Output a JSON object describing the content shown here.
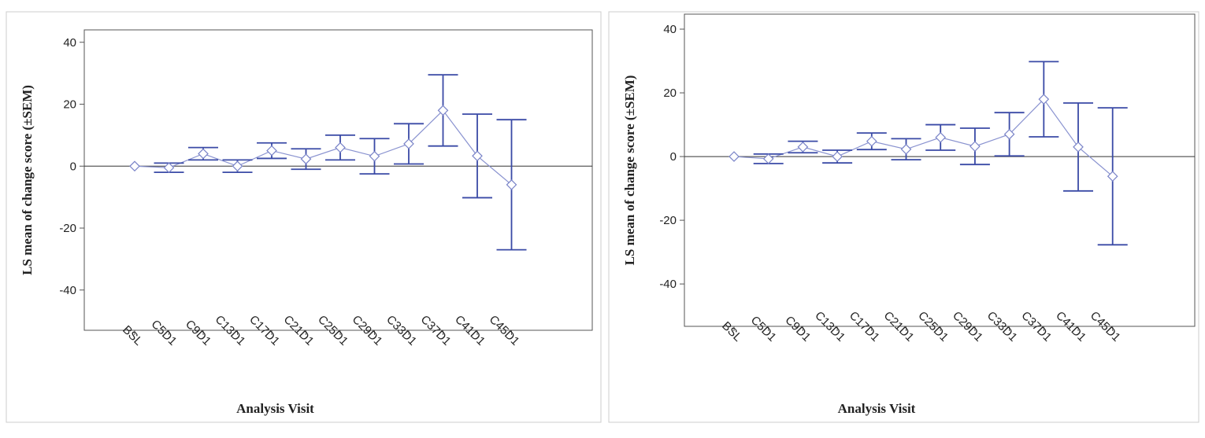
{
  "chart_data": [
    {
      "type": "errorbar",
      "y_label": "LS mean of change score (±SEM)",
      "x_label": "Analysis Visit",
      "categories": [
        "BSL",
        "C5D1",
        "C9D1",
        "C13D1",
        "C17D1",
        "C21D1",
        "C25D1",
        "C29D1",
        "C33D1",
        "C37D1",
        "C41D1",
        "C45D1"
      ],
      "values": [
        0,
        -0.5,
        4,
        0,
        5,
        2.3,
        6,
        3.2,
        7.2,
        18,
        3.3,
        -6
      ],
      "errors": [
        null,
        1.5,
        2,
        2,
        2.5,
        3.3,
        4,
        5.7,
        6.5,
        11.5,
        13.5,
        21
      ],
      "color": "#3a4aa6",
      "ylim": [
        -53,
        44
      ],
      "yticks": [
        -40,
        -20,
        0,
        20,
        40
      ],
      "reference_line": 0
    },
    {
      "type": "errorbar",
      "y_label": "LS mean of change score (±SEM)",
      "x_label": "Analysis Visit",
      "categories": [
        "BSL",
        "C5D1",
        "C9D1",
        "C13D1",
        "C17D1",
        "C21D1",
        "C25D1",
        "C29D1",
        "C33D1",
        "C37D1",
        "C41D1",
        "C45D1"
      ],
      "values": [
        0,
        -0.7,
        3,
        0,
        4.8,
        2.3,
        6,
        3.2,
        7,
        18,
        3,
        -6.2
      ],
      "errors": [
        null,
        1.5,
        1.8,
        2,
        2.6,
        3.3,
        4,
        5.7,
        6.8,
        11.8,
        13.8,
        21.5
      ],
      "color": "#3a4aa6",
      "ylim": [
        -53.3,
        44.7
      ],
      "yticks": [
        -40,
        -20,
        0,
        20,
        40
      ],
      "reference_line": 0
    }
  ]
}
